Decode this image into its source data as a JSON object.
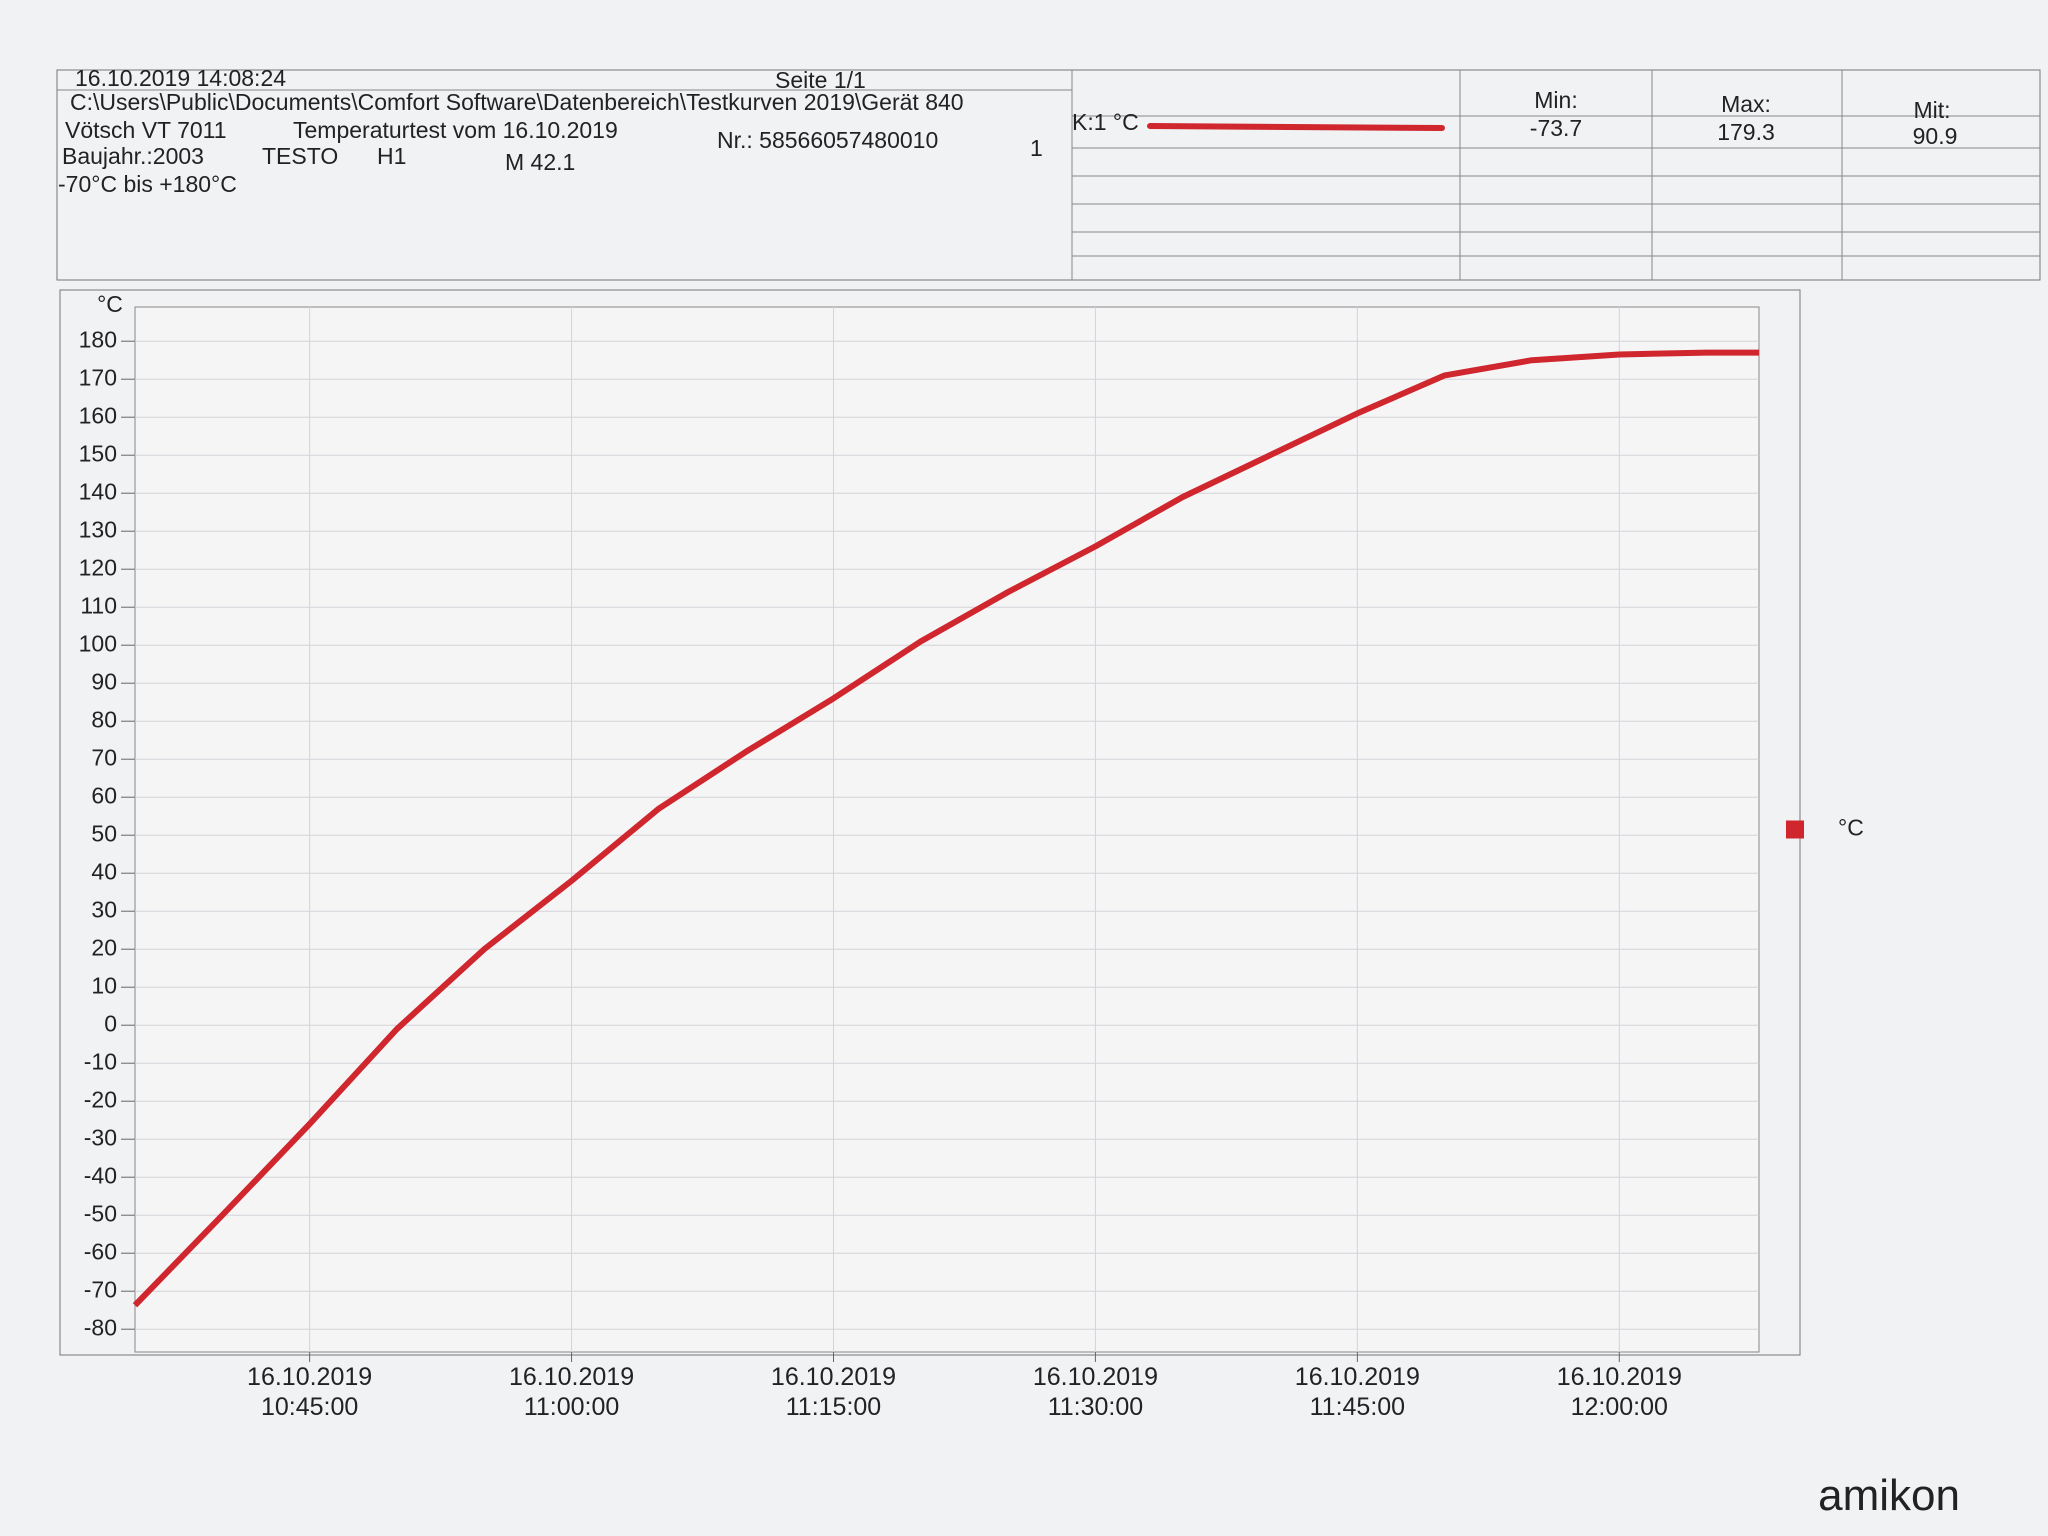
{
  "header": {
    "timestamp": "16.10.2019 14:08:24",
    "page": "Seite 1/1",
    "path": "C:\\Users\\Public\\Documents\\Comfort Software\\Datenbereich\\Testkurven 2019\\Gerät 840",
    "device": "Vötsch VT 7011",
    "test": "Temperaturtest vom 16.10.2019",
    "number": "Nr.: 58566057480010",
    "index": "1",
    "year": "Baujahr.:2003",
    "sensor": "TESTO",
    "probe": "H1",
    "model": "M 42.1",
    "range": "-70°C bis +180°C"
  },
  "summary": {
    "channel": "K:1 °C",
    "min_label": "Min:",
    "max_label": "Max:",
    "mean_label": "Mit:",
    "min": -73.7,
    "max": 179.3,
    "mean": 90.9
  },
  "watermark": "amikon",
  "chart_data": {
    "type": "line",
    "ylabel": "°C",
    "grid": true,
    "legend": "right",
    "x": [
      "16.10.2019 10:35:00",
      "16.10.2019 10:40:00",
      "16.10.2019 10:45:00",
      "16.10.2019 10:50:00",
      "16.10.2019 10:55:00",
      "16.10.2019 11:00:00",
      "16.10.2019 11:05:00",
      "16.10.2019 11:10:00",
      "16.10.2019 11:15:00",
      "16.10.2019 11:20:00",
      "16.10.2019 11:25:00",
      "16.10.2019 11:30:00",
      "16.10.2019 11:35:00",
      "16.10.2019 11:40:00",
      "16.10.2019 11:45:00",
      "16.10.2019 11:50:00",
      "16.10.2019 11:55:00",
      "16.10.2019 12:00:00",
      "16.10.2019 12:05:00",
      "16.10.2019 12:08:00"
    ],
    "series": [
      {
        "name": "°C",
        "color": "#d0262e",
        "values": [
          -73.7,
          -50,
          -26,
          -1,
          20,
          38,
          57,
          72,
          86,
          101,
          114,
          126,
          139,
          150,
          161,
          171,
          175,
          176.5,
          177,
          177
        ]
      }
    ],
    "xlim": [
      "16.10.2019 10:35:00",
      "16.10.2019 12:08:00"
    ],
    "xticks": [
      "16.10.2019 10:45:00",
      "16.10.2019 11:00:00",
      "16.10.2019 11:15:00",
      "16.10.2019 11:30:00",
      "16.10.2019 11:45:00",
      "16.10.2019 12:00:00"
    ],
    "ylim": [
      -86,
      189
    ],
    "yticks": [
      -80,
      -70,
      -60,
      -50,
      -40,
      -30,
      -20,
      -10,
      0,
      10,
      20,
      30,
      40,
      50,
      60,
      70,
      80,
      90,
      100,
      110,
      120,
      130,
      140,
      150,
      160,
      170,
      180
    ]
  }
}
